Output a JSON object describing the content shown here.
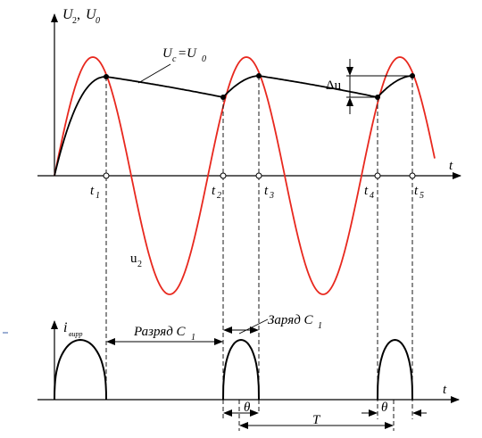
{
  "top_axis": {
    "y_label_main": "U",
    "y_label_sub1": "2",
    "y_label_sep": ", ",
    "y_label_main2": "U",
    "y_label_sub2": "0",
    "x_label": "t"
  },
  "labels": {
    "uc_main": "U",
    "uc_sub": "c",
    "uc_eq": " =U",
    "uc_sub2": "0",
    "delta_u": "Δu",
    "u2_main": "u",
    "u2_sub": "2"
  },
  "time_marks": [
    {
      "main": "t",
      "sub": "1"
    },
    {
      "main": "t",
      "sub": "2"
    },
    {
      "main": "t",
      "sub": "3"
    },
    {
      "main": "t",
      "sub": "4"
    },
    {
      "main": "t",
      "sub": "5"
    }
  ],
  "bottom_axis": {
    "y_label_main": "i",
    "y_label_sub": "вupр",
    "x_label": "t"
  },
  "annotations": {
    "discharge_main": "Разряд C",
    "discharge_sub": "1",
    "charge_main": "Заряд C",
    "charge_sub": "1",
    "theta_1": "θ",
    "theta_2": "θ",
    "period": "T"
  },
  "colors": {
    "sine_wave": "#e8281e",
    "capacitor_voltage": "#000000",
    "axes": "#000000"
  }
}
